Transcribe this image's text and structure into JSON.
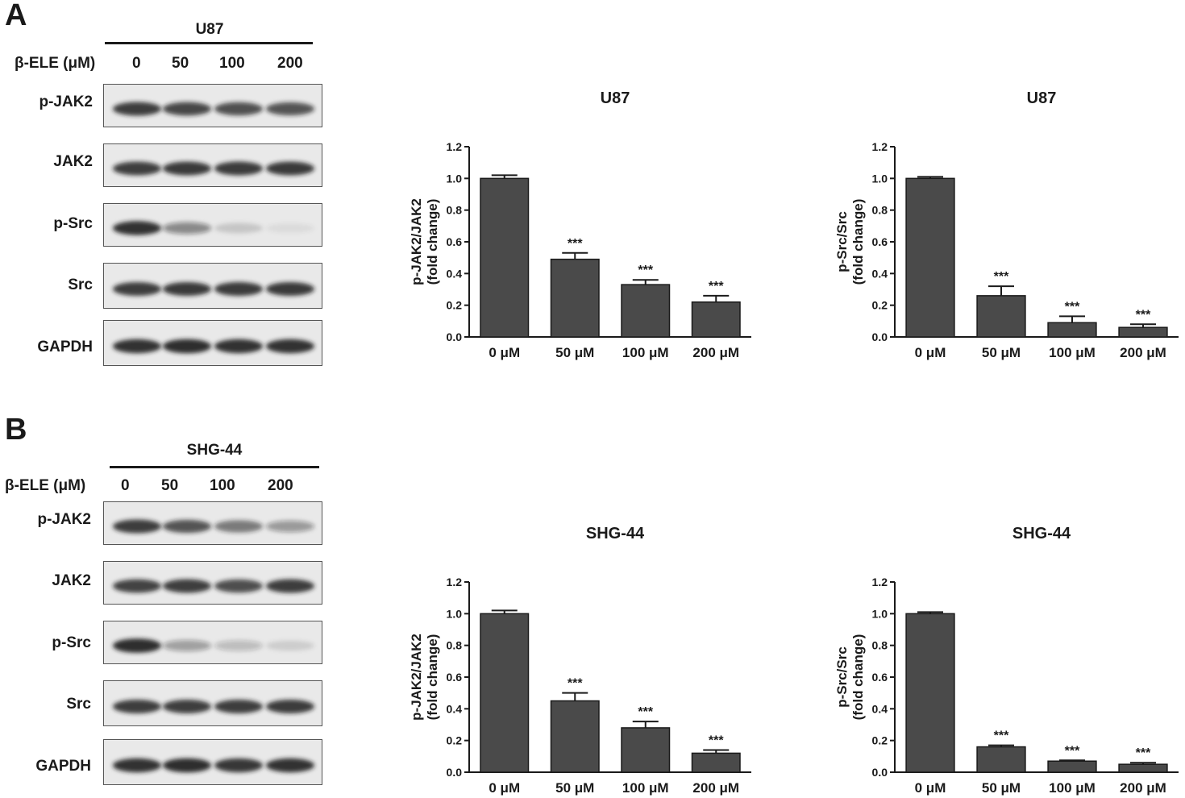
{
  "panels": [
    {
      "letter": "A",
      "cell_line": "U87",
      "dose_label": "β-ELE (μM)",
      "doses": [
        "0",
        "50",
        "100",
        "200"
      ],
      "blots": [
        {
          "label": "p-JAK2",
          "intensity": [
            0.85,
            0.78,
            0.74,
            0.72
          ]
        },
        {
          "label": "JAK2",
          "intensity": [
            0.82,
            0.84,
            0.86,
            0.84
          ]
        },
        {
          "label": "p-Src",
          "intensity": [
            0.9,
            0.45,
            0.15,
            0.06
          ]
        },
        {
          "label": "Src",
          "intensity": [
            0.85,
            0.84,
            0.86,
            0.84
          ]
        },
        {
          "label": "GAPDH",
          "intensity": [
            0.9,
            0.92,
            0.9,
            0.9
          ]
        }
      ]
    },
    {
      "letter": "B",
      "cell_line": "SHG-44",
      "dose_label": "β-ELE (μM)",
      "doses": [
        "0",
        "50",
        "100",
        "200"
      ],
      "blots": [
        {
          "label": "p-JAK2",
          "intensity": [
            0.85,
            0.72,
            0.55,
            0.38
          ]
        },
        {
          "label": "JAK2",
          "intensity": [
            0.8,
            0.82,
            0.75,
            0.85
          ]
        },
        {
          "label": "p-Src",
          "intensity": [
            0.92,
            0.35,
            0.22,
            0.12
          ]
        },
        {
          "label": "Src",
          "intensity": [
            0.85,
            0.82,
            0.85,
            0.83
          ]
        },
        {
          "label": "GAPDH",
          "intensity": [
            0.9,
            0.92,
            0.88,
            0.9
          ]
        }
      ]
    }
  ],
  "chart_data": [
    {
      "type": "bar",
      "title": "U87",
      "ylabel": [
        "p-JAK2/JAK2",
        "(fold change)"
      ],
      "categories": [
        "0  μM",
        "50  μM",
        "100  μM",
        "200  μM"
      ],
      "values": [
        1.0,
        0.49,
        0.33,
        0.22
      ],
      "errors": [
        0.02,
        0.04,
        0.03,
        0.04
      ],
      "annotations": [
        "",
        "***",
        "***",
        "***"
      ],
      "ylim": [
        0.0,
        1.2
      ],
      "yticks": [
        "0.0",
        "0.2",
        "0.4",
        "0.6",
        "0.8",
        "1.0",
        "1.2"
      ]
    },
    {
      "type": "bar",
      "title": "U87",
      "ylabel": [
        "p-Src/Src",
        "(fold change)"
      ],
      "categories": [
        "0  μM",
        "50  μM",
        "100  μM",
        "200  μM"
      ],
      "values": [
        1.0,
        0.26,
        0.09,
        0.06
      ],
      "errors": [
        0.01,
        0.06,
        0.04,
        0.02
      ],
      "annotations": [
        "",
        "***",
        "***",
        "***"
      ],
      "ylim": [
        0.0,
        1.2
      ],
      "yticks": [
        "0.0",
        "0.2",
        "0.4",
        "0.6",
        "0.8",
        "1.0",
        "1.2"
      ]
    },
    {
      "type": "bar",
      "title": "SHG-44",
      "ylabel": [
        "p-JAK2/JAK2",
        "(fold change)"
      ],
      "categories": [
        "0  μM",
        "50  μM",
        "100  μM",
        "200  μM"
      ],
      "values": [
        1.0,
        0.45,
        0.28,
        0.12
      ],
      "errors": [
        0.02,
        0.05,
        0.04,
        0.02
      ],
      "annotations": [
        "",
        "***",
        "***",
        "***"
      ],
      "ylim": [
        0.0,
        1.2
      ],
      "yticks": [
        "0.0",
        "0.2",
        "0.4",
        "0.6",
        "0.8",
        "1.0",
        "1.2"
      ]
    },
    {
      "type": "bar",
      "title": "SHG-44",
      "ylabel": [
        "p-Src/Src",
        "(fold change)"
      ],
      "categories": [
        "0  μM",
        "50  μM",
        "100  μM",
        "200  μM"
      ],
      "values": [
        1.0,
        0.16,
        0.07,
        0.05
      ],
      "errors": [
        0.01,
        0.01,
        0.005,
        0.01
      ],
      "annotations": [
        "",
        "***",
        "***",
        "***"
      ],
      "ylim": [
        0.0,
        1.2
      ],
      "yticks": [
        "0.0",
        "0.2",
        "0.4",
        "0.6",
        "0.8",
        "1.0",
        "1.2"
      ]
    }
  ],
  "colors": {
    "bar_fill": "#4a4a4a",
    "bar_edge": "#1a1a1a",
    "text": "#1a1a1a",
    "band": "#1c1c1c",
    "membrane": "#e9e9e9"
  }
}
